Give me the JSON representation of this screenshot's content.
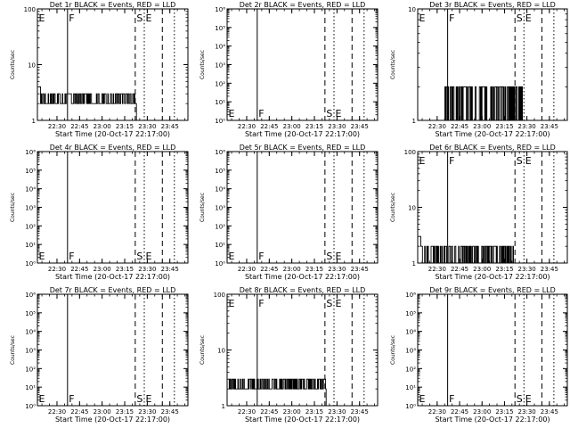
{
  "figure": {
    "xlabel": "Start Time (20-Oct-17 22:17:00)",
    "ylabel": "Counts/sec",
    "x_tick_labels": [
      "22:30",
      "22:45",
      "23:00",
      "23:15",
      "23:30",
      "23:45"
    ],
    "x_tick_hours": [
      22.5,
      22.75,
      23.0,
      23.25,
      23.5,
      23.75
    ],
    "xlim_hours": [
      22.2833,
      23.95
    ],
    "markers": [
      {
        "label": "E",
        "x_hour": 22.2833,
        "style": "solid"
      },
      {
        "label": "F",
        "x_hour": 22.6167,
        "style": "solid"
      },
      {
        "label": "S",
        "x_hour": 23.3667,
        "style": "dashed"
      },
      {
        "label": "E",
        "x_hour": 23.4667,
        "style": "dotted"
      },
      {
        "label": "",
        "x_hour": 23.6667,
        "style": "dashed"
      },
      {
        "label": "",
        "x_hour": 23.8,
        "style": "dotted"
      }
    ],
    "colors": {
      "events": "#000000",
      "lld": "#ff0000"
    }
  },
  "chart_data": [
    {
      "type": "line",
      "title": "Det 1r BLACK = Events, RED = LLD",
      "y_scale": "log",
      "ylim": [
        1,
        100
      ],
      "y_tick_labels": [
        "1",
        "10",
        "100"
      ],
      "y_ticks": [
        1,
        10,
        100
      ],
      "series": [
        {
          "name": "Events",
          "start_hour": 22.3,
          "end_hour": 23.38,
          "levels": [
            2,
            3
          ],
          "spike": 4
        }
      ]
    },
    {
      "type": "line",
      "title": "Det 2r BLACK = Events, RED = LLD",
      "y_scale": "log",
      "ylim": [
        1,
        1000000
      ],
      "y_tick_labels": [
        "10⁰",
        "10¹",
        "10²",
        "10³",
        "10⁴",
        "10⁵",
        "10⁶"
      ],
      "y_ticks": [
        1,
        10,
        100,
        1000,
        10000,
        100000,
        1000000
      ],
      "series": []
    },
    {
      "type": "line",
      "title": "Det 3r BLACK = Events, RED = LLD",
      "y_scale": "log",
      "ylim": [
        1,
        10
      ],
      "y_tick_labels": [
        "1",
        "10"
      ],
      "y_ticks": [
        1,
        10
      ],
      "series": [
        {
          "name": "Events",
          "start_hour": 22.58,
          "end_hour": 23.45,
          "levels": [
            1,
            2
          ],
          "spike": null
        }
      ]
    },
    {
      "type": "line",
      "title": "Det 4r BLACK = Events, RED = LLD",
      "y_scale": "log",
      "ylim": [
        1,
        1000000
      ],
      "y_tick_labels": [
        "10⁰",
        "10¹",
        "10²",
        "10³",
        "10⁴",
        "10⁵",
        "10⁶"
      ],
      "y_ticks": [
        1,
        10,
        100,
        1000,
        10000,
        100000,
        1000000
      ],
      "series": []
    },
    {
      "type": "line",
      "title": "Det 5r BLACK = Events, RED = LLD",
      "y_scale": "log",
      "ylim": [
        1,
        1000000
      ],
      "y_tick_labels": [
        "10⁰",
        "10¹",
        "10²",
        "10³",
        "10⁴",
        "10⁵",
        "10⁶"
      ],
      "y_ticks": [
        1,
        10,
        100,
        1000,
        10000,
        100000,
        1000000
      ],
      "series": []
    },
    {
      "type": "line",
      "title": "Det 6r BLACK = Events, RED = LLD",
      "y_scale": "log",
      "ylim": [
        1,
        100
      ],
      "y_tick_labels": [
        "1",
        "10",
        "100"
      ],
      "y_ticks": [
        1,
        10,
        100
      ],
      "series": [
        {
          "name": "Events",
          "start_hour": 22.3,
          "end_hour": 23.38,
          "levels": [
            1,
            2
          ],
          "spike": 3
        }
      ]
    },
    {
      "type": "line",
      "title": "Det 7r BLACK = Events, RED = LLD",
      "y_scale": "log",
      "ylim": [
        1,
        1000000
      ],
      "y_tick_labels": [
        "10⁰",
        "10¹",
        "10²",
        "10³",
        "10⁴",
        "10⁵",
        "10⁶"
      ],
      "y_ticks": [
        1,
        10,
        100,
        1000,
        10000,
        100000,
        1000000
      ],
      "series": []
    },
    {
      "type": "line",
      "title": "Det 8r BLACK = Events, RED = LLD",
      "y_scale": "log",
      "ylim": [
        1,
        100
      ],
      "y_tick_labels": [
        "1",
        "10",
        "100"
      ],
      "y_ticks": [
        1,
        10,
        100
      ],
      "series": [
        {
          "name": "Events",
          "start_hour": 22.3,
          "end_hour": 23.38,
          "levels": [
            2,
            3
          ],
          "spike": null
        }
      ]
    },
    {
      "type": "line",
      "title": "Det 9r BLACK = Events, RED = LLD",
      "y_scale": "log",
      "ylim": [
        1,
        1000000
      ],
      "y_tick_labels": [
        "10⁰",
        "10¹",
        "10²",
        "10³",
        "10⁴",
        "10⁵",
        "10⁶"
      ],
      "y_ticks": [
        1,
        10,
        100,
        1000,
        10000,
        100000,
        1000000
      ],
      "series": []
    }
  ]
}
